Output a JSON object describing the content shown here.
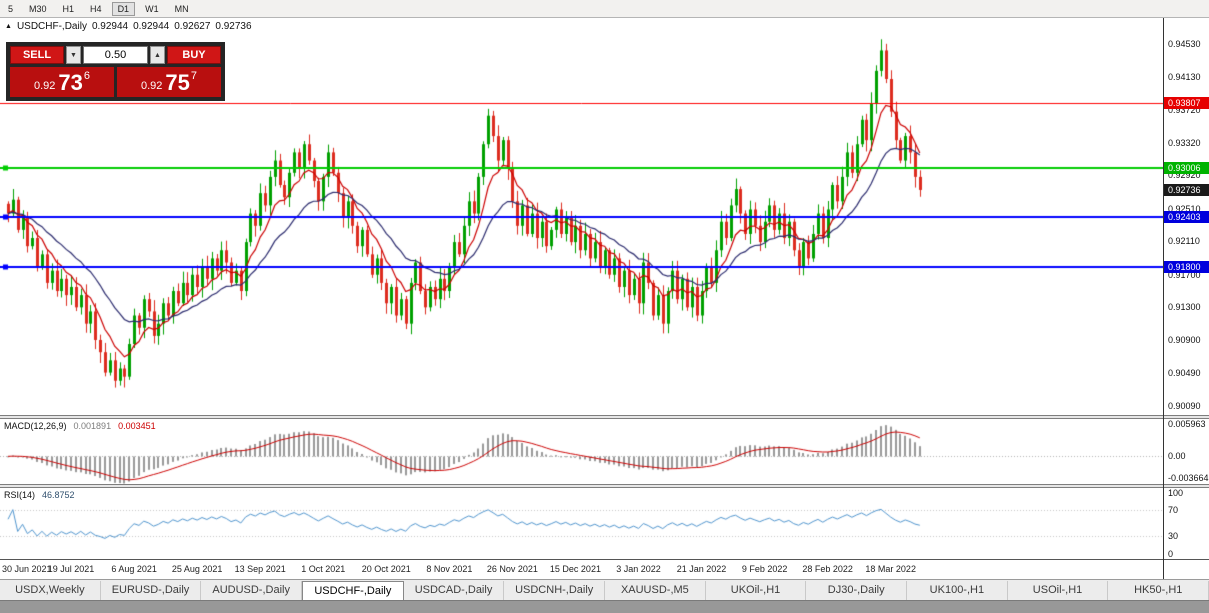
{
  "toolbar": {
    "timeframes": [
      "5",
      "M30",
      "H1",
      "H4",
      "D1",
      "W1",
      "MN"
    ],
    "active_timeframe": "D1"
  },
  "chart_header": {
    "expand_icon": "▲",
    "title": "USDCHF-,Daily",
    "open": "0.92944",
    "high": "0.92944",
    "low": "0.92627",
    "close": "0.92736"
  },
  "trade_panel": {
    "sell_label": "SELL",
    "buy_label": "BUY",
    "lot_value": "0.50",
    "lot_down_symbol": "▼",
    "lot_up_symbol": "▲",
    "sell_price_prefix": "0.92",
    "sell_price_big": "73",
    "sell_price_sup": "6",
    "buy_price_prefix": "0.92",
    "buy_price_big": "75",
    "buy_price_sup": "7"
  },
  "macd_panel": {
    "name": "MACD(12,26,9)",
    "value_main": "0.001891",
    "value_signal": "0.003451"
  },
  "rsi_panel": {
    "name": "RSI(14)",
    "value": "46.8752"
  },
  "price_axis": {
    "tags": [
      {
        "price": 0.93807,
        "color": "#e60000"
      },
      {
        "price": 0.93006,
        "color": "#00b300"
      },
      {
        "price": 0.92736,
        "color": "#1a1a1a"
      },
      {
        "price": 0.92403,
        "color": "#0000dd"
      },
      {
        "price": 0.918,
        "color": "#0000dd"
      }
    ]
  },
  "tabs": {
    "items": [
      "USDX,Weekly",
      "EURUSD-,Daily",
      "AUDUSD-,Daily",
      "USDCHF-,Daily",
      "USDCAD-,Daily",
      "USDCNH-,Daily",
      "XAUUSD-,M5",
      "UKOil-,H1",
      "DJ30-,Daily",
      "UK100-,H1",
      "USOil-,H1",
      "HK50-,H1"
    ],
    "active_index": 3
  },
  "colors": {
    "bull": "#00a000",
    "bear": "#dd2c1f",
    "macd_hist": "#999999",
    "macd_signal": "#cc0000",
    "rsi": "#4f94cd"
  },
  "chart_data": {
    "type": "candlestick",
    "symbol": "USDCHF-",
    "timeframe": "Daily",
    "ohlc_display": {
      "open": 0.92944,
      "high": 0.92944,
      "low": 0.92627,
      "close": 0.92736
    },
    "visible_price_range": [
      0.8998,
      0.94848
    ],
    "price_ticks": [
      0.9453,
      0.9413,
      0.9372,
      0.9332,
      0.9292,
      0.9251,
      0.9211,
      0.917,
      0.913,
      0.909,
      0.9049,
      0.9009
    ],
    "levels": [
      {
        "price": 0.93807,
        "color": "#ff0000",
        "width": 1,
        "handle": false
      },
      {
        "price": 0.93006,
        "color": "#00cc00",
        "width": 2,
        "handle": true
      },
      {
        "price": 0.92403,
        "color": "#0000ff",
        "width": 2,
        "handle": true
      },
      {
        "price": 0.918,
        "color": "#0000ff",
        "width": 2,
        "handle": true
      }
    ],
    "current_price": 0.92736,
    "moving_averages": [
      {
        "period": 8,
        "color": "#cc0000"
      },
      {
        "period": 20,
        "color": "#2b2b6e"
      }
    ],
    "closes": [
      0.9245,
      0.9262,
      0.9225,
      0.924,
      0.9205,
      0.9215,
      0.918,
      0.9195,
      0.916,
      0.9175,
      0.915,
      0.9165,
      0.9145,
      0.9155,
      0.913,
      0.9145,
      0.911,
      0.9125,
      0.909,
      0.9075,
      0.905,
      0.9065,
      0.904,
      0.9055,
      0.9045,
      0.9085,
      0.912,
      0.9105,
      0.914,
      0.9125,
      0.9095,
      0.911,
      0.9135,
      0.912,
      0.915,
      0.9135,
      0.916,
      0.9145,
      0.917,
      0.9155,
      0.918,
      0.9165,
      0.919,
      0.9175,
      0.92,
      0.9185,
      0.916,
      0.9175,
      0.915,
      0.921,
      0.9245,
      0.923,
      0.927,
      0.9255,
      0.929,
      0.931,
      0.928,
      0.9265,
      0.9295,
      0.932,
      0.93,
      0.933,
      0.931,
      0.9285,
      0.926,
      0.929,
      0.932,
      0.9295,
      0.927,
      0.924,
      0.926,
      0.923,
      0.9205,
      0.9225,
      0.9195,
      0.917,
      0.919,
      0.916,
      0.9135,
      0.9155,
      0.912,
      0.914,
      0.911,
      0.916,
      0.9185,
      0.915,
      0.913,
      0.9155,
      0.914,
      0.9165,
      0.915,
      0.918,
      0.921,
      0.9195,
      0.923,
      0.926,
      0.9245,
      0.929,
      0.933,
      0.9365,
      0.934,
      0.931,
      0.9335,
      0.93,
      0.926,
      0.923,
      0.9255,
      0.922,
      0.9245,
      0.9215,
      0.9235,
      0.9205,
      0.9225,
      0.925,
      0.922,
      0.924,
      0.921,
      0.923,
      0.92,
      0.922,
      0.919,
      0.921,
      0.918,
      0.92,
      0.917,
      0.919,
      0.9155,
      0.9175,
      0.9145,
      0.9165,
      0.9135,
      0.9185,
      0.916,
      0.912,
      0.9145,
      0.911,
      0.915,
      0.9175,
      0.914,
      0.9165,
      0.913,
      0.9155,
      0.912,
      0.915,
      0.918,
      0.916,
      0.92,
      0.9235,
      0.9215,
      0.9255,
      0.9275,
      0.9245,
      0.922,
      0.925,
      0.923,
      0.921,
      0.9235,
      0.9255,
      0.9225,
      0.9245,
      0.9215,
      0.9235,
      0.92,
      0.918,
      0.921,
      0.919,
      0.922,
      0.9245,
      0.9215,
      0.925,
      0.928,
      0.926,
      0.929,
      0.932,
      0.9295,
      0.933,
      0.936,
      0.9335,
      0.938,
      0.942,
      0.9445,
      0.941,
      0.937,
      0.9335,
      0.931,
      0.934,
      0.932,
      0.929,
      0.9274
    ],
    "x_labels": [
      {
        "index": 0,
        "label": "30 Jun 2021"
      },
      {
        "index": 13,
        "label": "19 Jul 2021"
      },
      {
        "index": 26,
        "label": "6 Aug 2021"
      },
      {
        "index": 39,
        "label": "25 Aug 2021"
      },
      {
        "index": 52,
        "label": "13 Sep 2021"
      },
      {
        "index": 65,
        "label": "1 Oct 2021"
      },
      {
        "index": 78,
        "label": "20 Oct 2021"
      },
      {
        "index": 91,
        "label": "8 Nov 2021"
      },
      {
        "index": 104,
        "label": "26 Nov 2021"
      },
      {
        "index": 117,
        "label": "15 Dec 2021"
      },
      {
        "index": 130,
        "label": "3 Jan 2022"
      },
      {
        "index": 143,
        "label": "21 Jan 2022"
      },
      {
        "index": 156,
        "label": "9 Feb 2022"
      },
      {
        "index": 169,
        "label": "28 Feb 2022"
      },
      {
        "index": 182,
        "label": "18 Mar 2022"
      }
    ],
    "macd": {
      "params": "12,26,9",
      "current_main": 0.001891,
      "current_signal": 0.003451,
      "range": [
        -0.0046,
        0.0062
      ],
      "ticks": [
        {
          "v": 0.005963,
          "label": "0.005963"
        },
        {
          "v": 0,
          "label": "0.00"
        },
        {
          "v": -0.003664,
          "label": "-0.003664"
        }
      ]
    },
    "rsi": {
      "period": 14,
      "current": 46.8752,
      "range": [
        0,
        100
      ],
      "levels": [
        70,
        30
      ],
      "ticks": [
        {
          "v": 100,
          "label": "100"
        },
        {
          "v": 70,
          "label": "70"
        },
        {
          "v": 30,
          "label": "30"
        },
        {
          "v": 0,
          "label": "0"
        }
      ]
    }
  }
}
